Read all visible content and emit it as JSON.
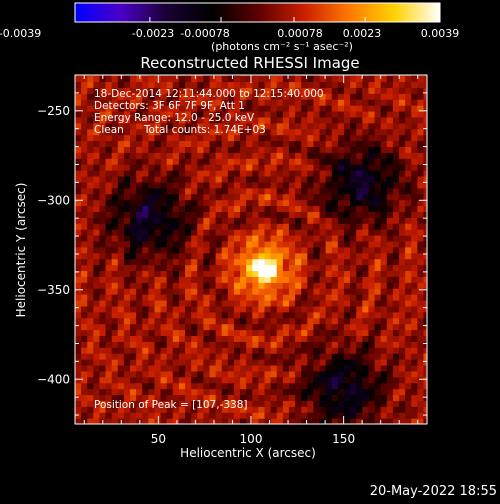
{
  "colorbar": {
    "tick_labels": [
      "-0.0039",
      "-0.0023",
      "-0.00078",
      "0.00078",
      "0.0023",
      "0.0039"
    ],
    "unit_label": "(photons cm⁻² s⁻¹ asec⁻²)",
    "range": [
      -0.0039,
      0.0039
    ],
    "colors": [
      "#0000ff",
      "#4b00c8",
      "#1a0033",
      "#000000",
      "#5a0000",
      "#c81e00",
      "#ff7800",
      "#ffd200",
      "#ffffff"
    ]
  },
  "chart_data": {
    "type": "heatmap",
    "title": "Reconstructed RHESSI Image",
    "xlabel": "Heliocentric X (arcsec)",
    "ylabel": "Heliocentric Y (arcsec)",
    "xlim": [
      5,
      195
    ],
    "ylim": [
      -425,
      -230
    ],
    "x_ticks": [
      50,
      100,
      150
    ],
    "y_ticks": [
      -250,
      -300,
      -350,
      -400
    ],
    "annotations": [
      "18-Dec-2014 12:11:44.000 to 12:15:40.000",
      "Detectors: 3F 6F 7F 9F, Att 1",
      "Energy Range: 12.0 - 25.0 keV",
      "Clean      Total counts: 1.74E+03"
    ],
    "peak_label": "Position of Peak = [107,-338]",
    "peak": {
      "x": 107,
      "y": -338,
      "value": 0.0039
    },
    "minimum_regions": [
      {
        "x": 45,
        "y": -310
      },
      {
        "x": 150,
        "y": -405
      },
      {
        "x": 160,
        "y": -290
      }
    ]
  },
  "timestamp": "20-May-2022 18:55"
}
